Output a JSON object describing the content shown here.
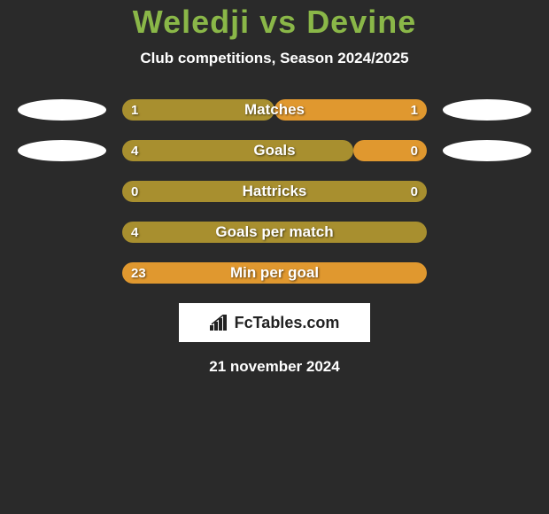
{
  "title": {
    "left": "Weledji",
    "vs": "vs",
    "right": "Devine",
    "color": "#8ab748"
  },
  "subtitle": "Club competitions, Season 2024/2025",
  "colors": {
    "left_bar": "#a88f2f",
    "right_bar": "#e0982f",
    "background": "#2a2a2a",
    "text": "#ffffff"
  },
  "rows": [
    {
      "label": "Matches",
      "left_val": "1",
      "right_val": "1",
      "left_width": 50,
      "right_width": 50,
      "left_color": "#a88f2f",
      "right_color": "#e0982f",
      "show_avatars": true,
      "show_right_val": true
    },
    {
      "label": "Goals",
      "left_val": "4",
      "right_val": "0",
      "left_width": 76,
      "right_width": 24,
      "left_color": "#a88f2f",
      "right_color": "#e0982f",
      "show_avatars": true,
      "show_right_val": true
    },
    {
      "label": "Hattricks",
      "left_val": "0",
      "right_val": "0",
      "left_width": 100,
      "right_width": 0,
      "left_color": "#a88f2f",
      "right_color": "#e0982f",
      "show_avatars": false,
      "show_right_val": true
    },
    {
      "label": "Goals per match",
      "left_val": "4",
      "right_val": "",
      "left_width": 100,
      "right_width": 0,
      "left_color": "#a88f2f",
      "right_color": "#e0982f",
      "show_avatars": false,
      "show_right_val": false
    },
    {
      "label": "Min per goal",
      "left_val": "23",
      "right_val": "",
      "left_width": 100,
      "right_width": 0,
      "left_color": "#e0982f",
      "right_color": "#e0982f",
      "show_avatars": false,
      "show_right_val": false
    }
  ],
  "logo_text": "FcTables.com",
  "date": "21 november 2024"
}
